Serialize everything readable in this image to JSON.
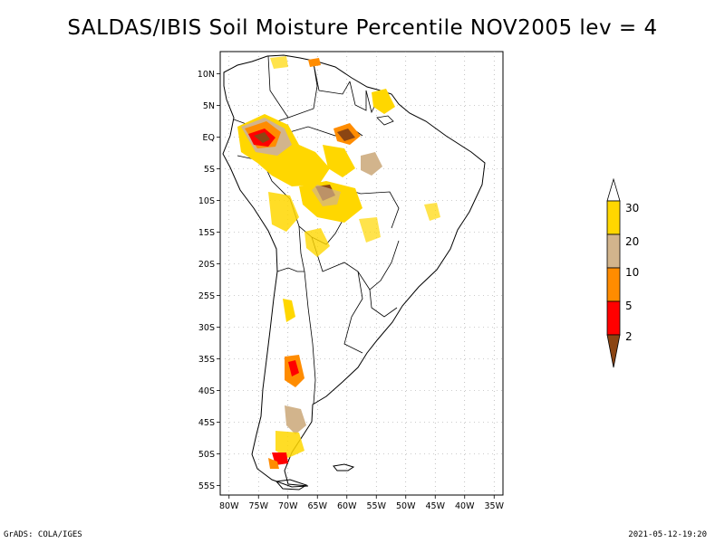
{
  "title": "SALDAS/IBIS Soil Moisture Percentile NOV2005 lev = 4",
  "map": {
    "lat_labels": [
      "10N",
      "5N",
      "EQ",
      "5S",
      "10S",
      "15S",
      "20S",
      "25S",
      "30S",
      "35S",
      "40S",
      "45S",
      "50S",
      "55S"
    ],
    "lon_labels": [
      "80W",
      "75W",
      "70W",
      "65W",
      "60W",
      "55W",
      "50W",
      "45W",
      "40W",
      "35W"
    ],
    "region": "South America",
    "projection": "latitude-longitude"
  },
  "legend": {
    "levels": [
      "2",
      "5",
      "10",
      "20",
      "30"
    ],
    "colors": {
      "below_2": "#8b4513",
      "2_to_5": "#ff0000",
      "5_to_10": "#ff8c00",
      "10_to_20": "#d2b48c",
      "20_to_30": "#ffd700",
      "above_30": "#ffffff"
    }
  },
  "footer": {
    "left": "GrADS: COLA/IGES",
    "right": "2021-05-12-19:20"
  }
}
